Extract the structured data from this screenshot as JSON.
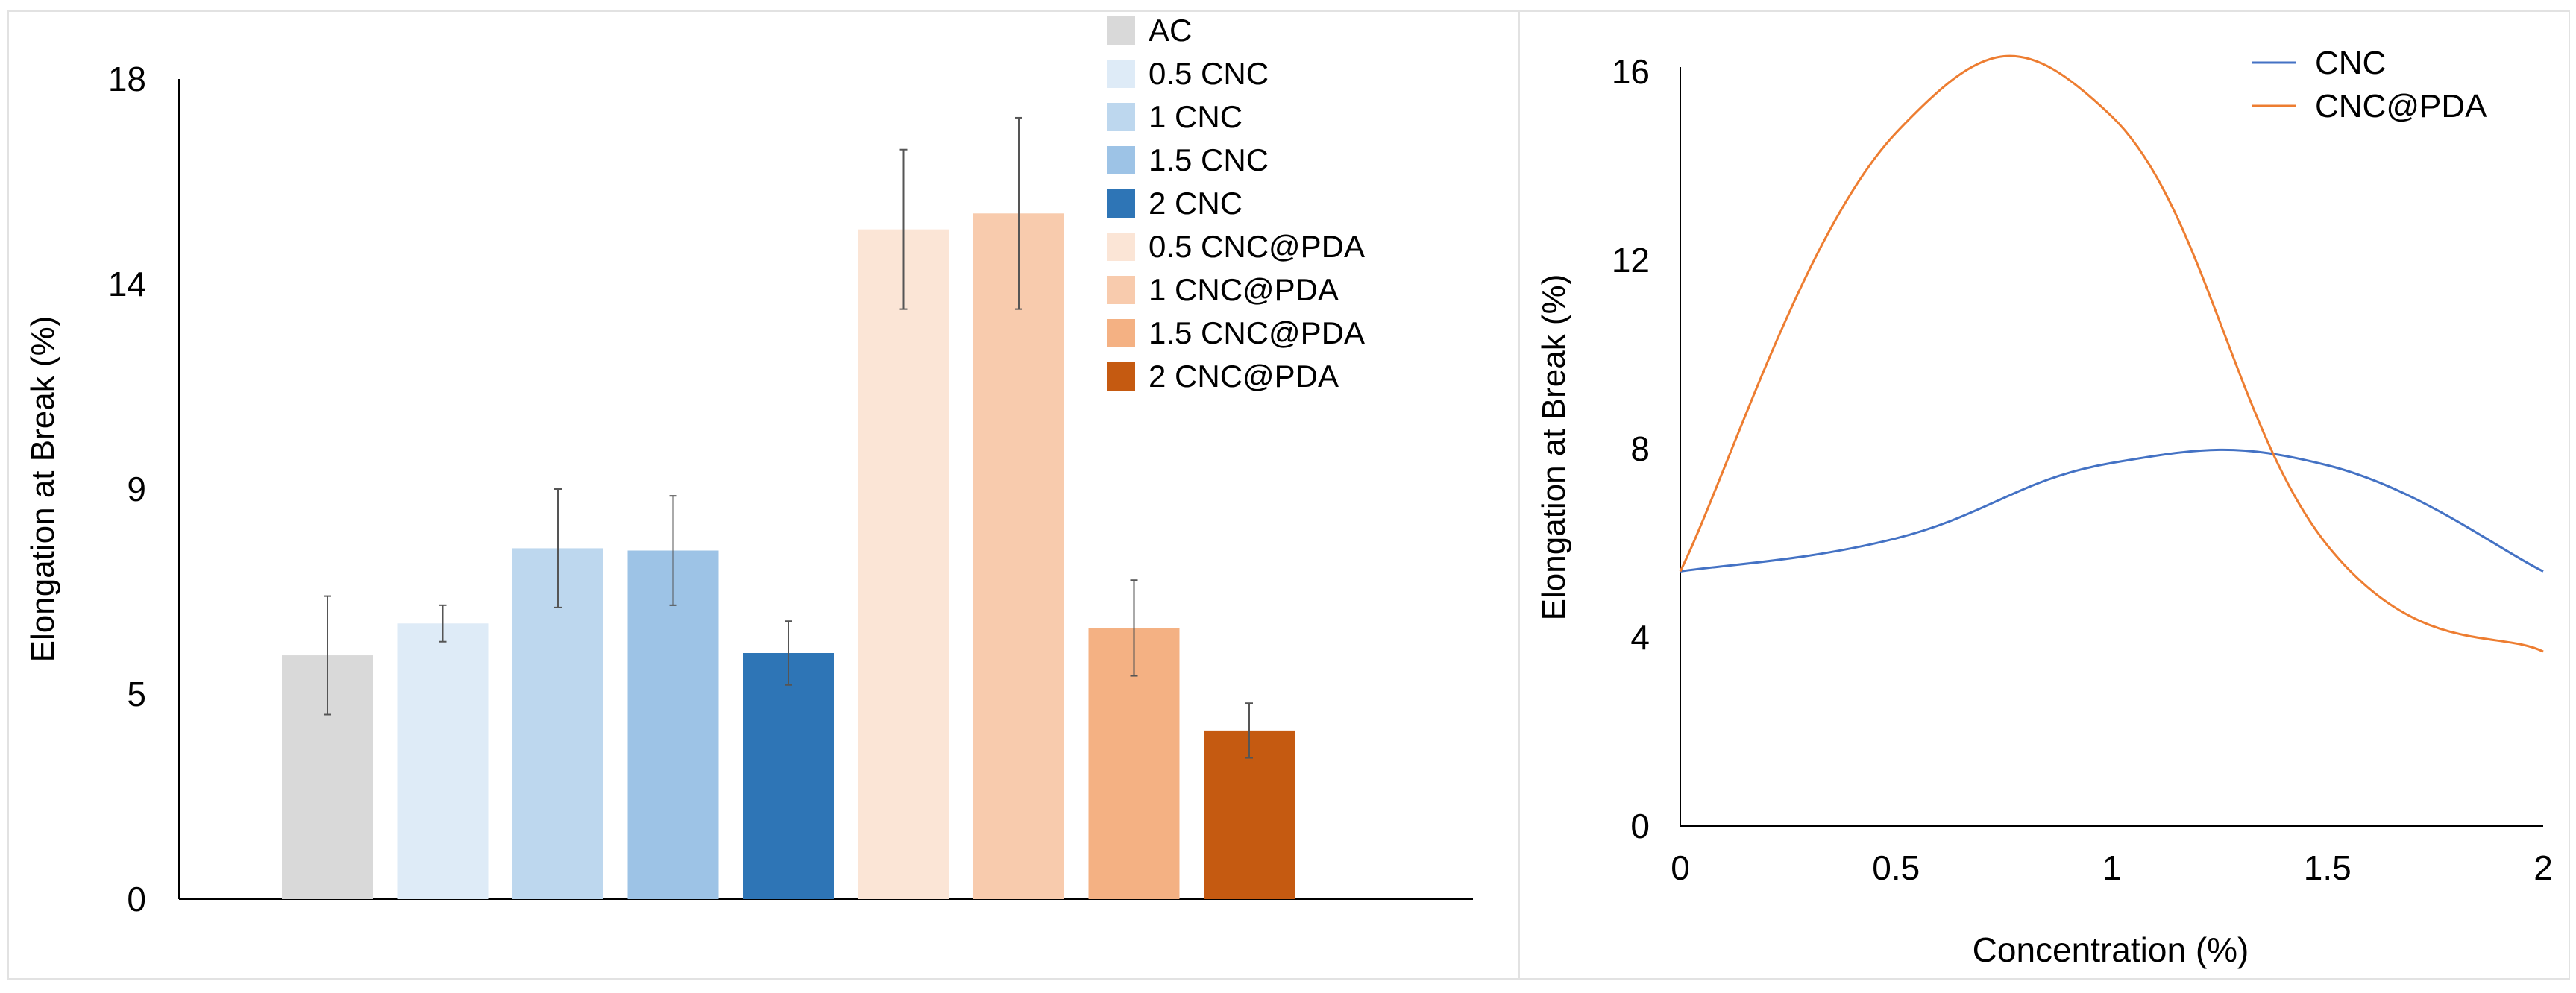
{
  "chart_data": [
    {
      "type": "bar",
      "ylabel": "Elongation at Break (%)",
      "xlabel": "",
      "ylim": [
        0,
        18
      ],
      "yticks": [
        {
          "value": 0,
          "label": "0"
        },
        {
          "value": 4.5,
          "label": "5"
        },
        {
          "value": 9,
          "label": "9"
        },
        {
          "value": 13.5,
          "label": "14"
        },
        {
          "value": 18,
          "label": "18"
        }
      ],
      "categories": [
        "AC",
        "0.5 CNC",
        "1 CNC",
        "1.5 CNC",
        "2 CNC",
        "0.5 CNC@PDA",
        "1 CNC@PDA",
        "1.5 CNC@PDA",
        "2 CNC@PDA"
      ],
      "values": [
        5.35,
        6.05,
        7.7,
        7.65,
        5.4,
        14.7,
        15.05,
        5.95,
        3.7
      ],
      "errors": [
        1.3,
        0.4,
        1.3,
        1.2,
        0.7,
        1.75,
        2.1,
        1.05,
        0.6
      ],
      "colors": [
        "#d9d9d9",
        "#deebf7",
        "#bdd7ee",
        "#9dc3e6",
        "#2e75b6",
        "#fbe5d6",
        "#f8cbad",
        "#f4b183",
        "#c55a11"
      ],
      "grid": false,
      "legend": "top-right"
    },
    {
      "type": "line",
      "xlabel": "Concentration (%)",
      "ylabel": "Elongation at Break (%)",
      "xlim": [
        0,
        2
      ],
      "ylim": [
        0,
        16
      ],
      "xticks": [
        {
          "value": 0,
          "label": "0"
        },
        {
          "value": 0.5,
          "label": "0.5"
        },
        {
          "value": 1,
          "label": "1"
        },
        {
          "value": 1.5,
          "label": "1.5"
        },
        {
          "value": 2,
          "label": "2"
        }
      ],
      "yticks": [
        {
          "value": 0,
          "label": "0"
        },
        {
          "value": 4,
          "label": "4"
        },
        {
          "value": 8,
          "label": "8"
        },
        {
          "value": 12,
          "label": "12"
        },
        {
          "value": 16,
          "label": "16"
        }
      ],
      "x": [
        0,
        0.5,
        1,
        1.5,
        2
      ],
      "series": [
        {
          "name": "CNC",
          "color": "#4472c4",
          "values": [
            5.4,
            6.1,
            7.7,
            7.65,
            5.4
          ]
        },
        {
          "name": "CNC@PDA",
          "color": "#ed7d31",
          "values": [
            5.4,
            14.7,
            15.05,
            5.95,
            3.7
          ]
        }
      ],
      "grid": false,
      "legend": "top-right"
    }
  ]
}
